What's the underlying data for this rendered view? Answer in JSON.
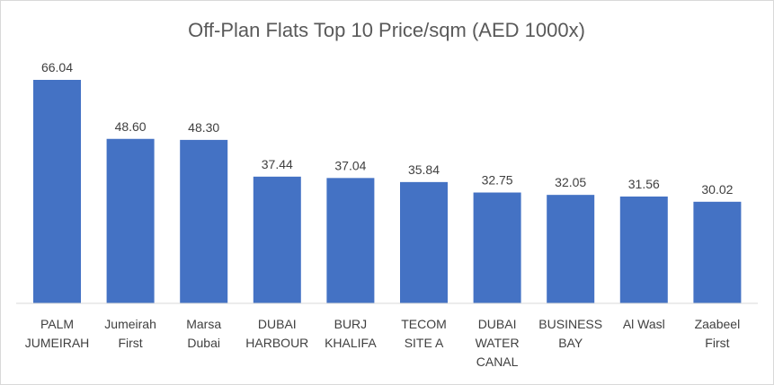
{
  "chart_data": {
    "type": "bar",
    "title": "Off-Plan Flats Top 10 Price/sqm (AED 1000x)",
    "xlabel": "",
    "ylabel": "",
    "ylim": [
      0,
      66.04
    ],
    "grid": false,
    "legend": "none",
    "bar_color": "#4472C4",
    "categories": [
      [
        "PALM",
        "JUMEIRAH"
      ],
      [
        "Jumeirah",
        "First"
      ],
      [
        "Marsa",
        "Dubai"
      ],
      [
        "DUBAI",
        "HARBOUR"
      ],
      [
        "BURJ",
        "KHALIFA"
      ],
      [
        "TECOM",
        "SITE A"
      ],
      [
        "DUBAI",
        "WATER",
        "CANAL"
      ],
      [
        "BUSINESS",
        "BAY"
      ],
      [
        "Al Wasl"
      ],
      [
        "Zaabeel",
        "First"
      ]
    ],
    "values": [
      66.04,
      48.6,
      48.3,
      37.44,
      37.04,
      35.84,
      32.75,
      32.05,
      31.56,
      30.02
    ],
    "value_labels": [
      "66.04",
      "48.60",
      "48.30",
      "37.44",
      "37.04",
      "35.84",
      "32.75",
      "32.05",
      "31.56",
      "30.02"
    ]
  }
}
